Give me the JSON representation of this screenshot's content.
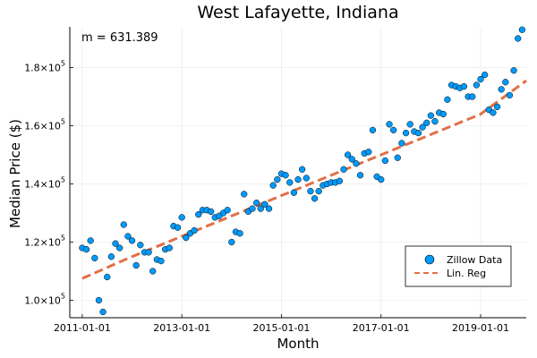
{
  "chart_data": {
    "type": "scatter",
    "title": "West Lafayette, Indiana",
    "xlabel": "Month",
    "ylabel": "Median Price ($)",
    "annotation": "m = 631.389",
    "x_ticks": [
      "2011-01-01",
      "2013-01-01",
      "2015-01-01",
      "2017-01-01",
      "2019-01-01"
    ],
    "y_ticks": [
      {
        "value": 100000,
        "mantissa": "1.0×10",
        "exp": "5"
      },
      {
        "value": 120000,
        "mantissa": "1.2×10",
        "exp": "5"
      },
      {
        "value": 140000,
        "mantissa": "1.4×10",
        "exp": "5"
      },
      {
        "value": 160000,
        "mantissa": "1.6×10",
        "exp": "5"
      },
      {
        "value": 180000,
        "mantissa": "1.8×10",
        "exp": "5"
      }
    ],
    "xlim": [
      "2010-10-01",
      "2019-12-01"
    ],
    "ylim": [
      94000,
      194000
    ],
    "grid": true,
    "legend_position": "bottom-right",
    "series": [
      {
        "name": "Zillow Data",
        "kind": "scatter",
        "color": "#009AFA",
        "x": [
          "2011-01",
          "2011-02",
          "2011-03",
          "2011-04",
          "2011-05",
          "2011-06",
          "2011-07",
          "2011-08",
          "2011-09",
          "2011-10",
          "2011-11",
          "2011-12",
          "2012-01",
          "2012-02",
          "2012-03",
          "2012-04",
          "2012-05",
          "2012-06",
          "2012-07",
          "2012-08",
          "2012-09",
          "2012-10",
          "2012-11",
          "2012-12",
          "2013-01",
          "2013-02",
          "2013-03",
          "2013-04",
          "2013-05",
          "2013-06",
          "2013-07",
          "2013-08",
          "2013-09",
          "2013-10",
          "2013-11",
          "2013-12",
          "2014-01",
          "2014-02",
          "2014-03",
          "2014-04",
          "2014-05",
          "2014-06",
          "2014-07",
          "2014-08",
          "2014-09",
          "2014-10",
          "2014-11",
          "2014-12",
          "2015-01",
          "2015-02",
          "2015-03",
          "2015-04",
          "2015-05",
          "2015-06",
          "2015-07",
          "2015-08",
          "2015-09",
          "2015-10",
          "2015-11",
          "2015-12",
          "2016-01",
          "2016-02",
          "2016-03",
          "2016-04",
          "2016-05",
          "2016-06",
          "2016-07",
          "2016-08",
          "2016-09",
          "2016-10",
          "2016-11",
          "2016-12",
          "2017-01",
          "2017-02",
          "2017-03",
          "2017-04",
          "2017-05",
          "2017-06",
          "2017-07",
          "2017-08",
          "2017-09",
          "2017-10",
          "2017-11",
          "2017-12",
          "2018-01",
          "2018-02",
          "2018-03",
          "2018-04",
          "2018-05",
          "2018-06",
          "2018-07",
          "2018-08",
          "2018-09",
          "2018-10",
          "2018-11",
          "2018-12",
          "2019-01",
          "2019-02",
          "2019-03",
          "2019-04",
          "2019-05",
          "2019-06",
          "2019-07",
          "2019-08",
          "2019-09",
          "2019-10",
          "2019-11",
          "2019-12"
        ],
        "y": [
          118000,
          117500,
          120500,
          114500,
          100000,
          96000,
          108000,
          115000,
          119500,
          118000,
          126000,
          122000,
          120500,
          112000,
          119000,
          116500,
          116500,
          110000,
          114000,
          113500,
          117500,
          118000,
          125500,
          125000,
          128500,
          121500,
          123000,
          124000,
          129500,
          131000,
          131000,
          130500,
          128500,
          129000,
          130000,
          131000,
          120000,
          123500,
          123000,
          136500,
          130500,
          131500,
          133500,
          131500,
          133000,
          131500,
          139500,
          141500,
          143500,
          143000,
          140500,
          137000,
          141500,
          145000,
          142000,
          137500,
          135000,
          137500,
          139500,
          140000,
          140500,
          140500,
          141000,
          145000,
          150000,
          148500,
          147000,
          143000,
          150500,
          151000,
          158500,
          142500,
          141500,
          148000,
          160500,
          158500,
          149000,
          154000,
          157500,
          160500,
          158000,
          157500,
          159500,
          161000,
          163500,
          161500,
          164500,
          164000,
          169000,
          174000,
          173500,
          173000,
          173500,
          170000,
          170000,
          174000,
          176000,
          177500,
          165500,
          164500,
          166500,
          172500,
          175000,
          170500,
          179000,
          190000,
          193000,
          null
        ]
      },
      {
        "name": "Lin. Reg",
        "kind": "line",
        "color": "#E26F46",
        "dashed": true,
        "x": [
          "2011-01",
          "2011-12",
          "2012-01",
          "2012-12",
          "2013-01",
          "2013-12",
          "2014-01",
          "2014-12",
          "2015-01",
          "2015-12",
          "2016-01",
          "2016-12",
          "2017-01",
          "2017-12",
          "2018-01",
          "2018-12",
          "2019-01",
          "2019-12"
        ],
        "y": [
          107500,
          114400,
          115000,
          121400,
          122000,
          128400,
          129000,
          135400,
          136000,
          142400,
          143000,
          149400,
          150000,
          156400,
          157000,
          163400,
          164000,
          175500
        ]
      }
    ]
  }
}
